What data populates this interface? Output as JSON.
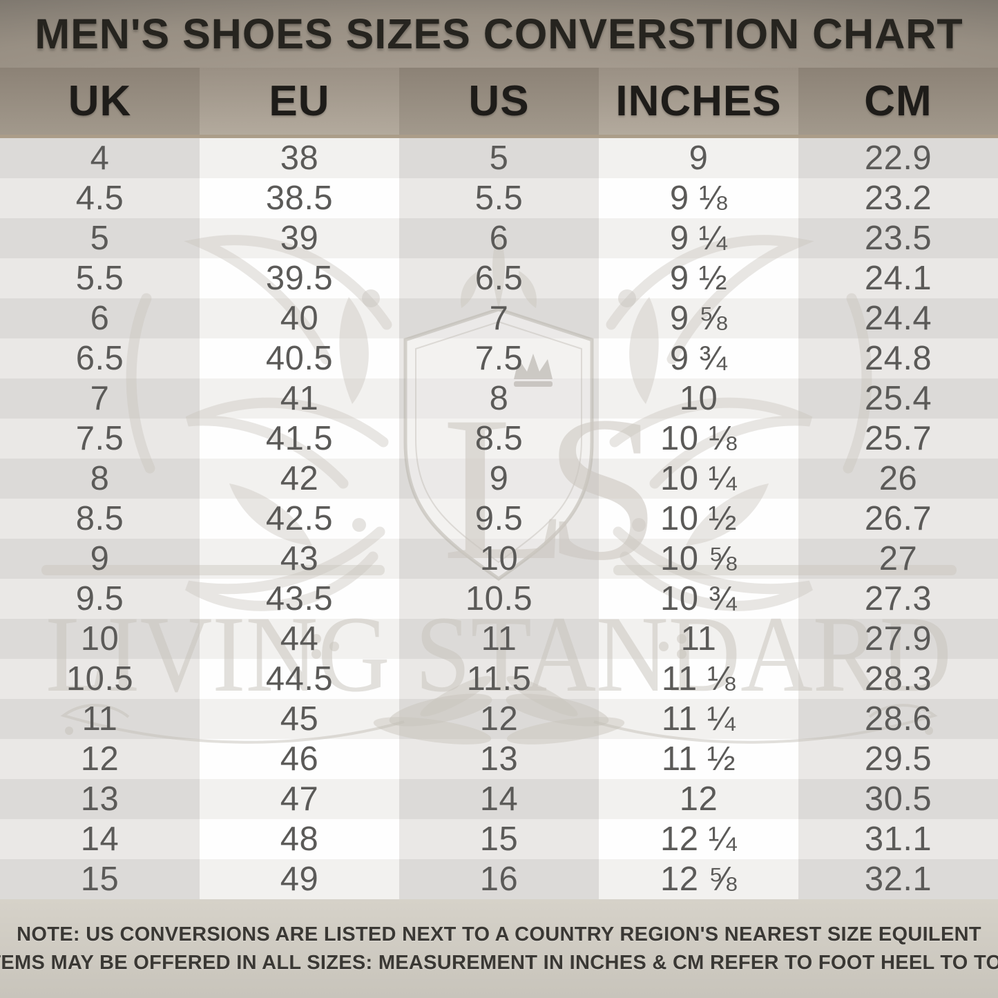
{
  "title": "MEN'S SHOES SIZES CONVERSTION CHART",
  "chart_data": {
    "type": "table",
    "title": "MEN'S SHOES SIZES CONVERSTION CHART",
    "columns": [
      "UK",
      "EU",
      "US",
      "INCHES",
      "CM"
    ],
    "rows": [
      [
        "4",
        "38",
        "5",
        "9",
        "22.9"
      ],
      [
        "4.5",
        "38.5",
        "5.5",
        "9 ⅛",
        "23.2"
      ],
      [
        "5",
        "39",
        "6",
        "9 ¼",
        "23.5"
      ],
      [
        "5.5",
        "39.5",
        "6.5",
        "9 ½",
        "24.1"
      ],
      [
        "6",
        "40",
        "7",
        "9 ⅝",
        "24.4"
      ],
      [
        "6.5",
        "40.5",
        "7.5",
        "9 ¾",
        "24.8"
      ],
      [
        "7",
        "41",
        "8",
        "10",
        "25.4"
      ],
      [
        "7.5",
        "41.5",
        "8.5",
        "10 ⅛",
        "25.7"
      ],
      [
        "8",
        "42",
        "9",
        "10 ¼",
        "26"
      ],
      [
        "8.5",
        "42.5",
        "9.5",
        "10 ½",
        "26.7"
      ],
      [
        "9",
        "43",
        "10",
        "10 ⅝",
        "27"
      ],
      [
        "9.5",
        "43.5",
        "10.5",
        "10 ¾",
        "27.3"
      ],
      [
        "10",
        "44",
        "11",
        "11",
        "27.9"
      ],
      [
        "10.5",
        "44.5",
        "11.5",
        "11 ⅛",
        "28.3"
      ],
      [
        "11",
        "45",
        "12",
        "11 ¼",
        "28.6"
      ],
      [
        "12",
        "46",
        "13",
        "11 ½",
        "29.5"
      ],
      [
        "13",
        "47",
        "14",
        "12",
        "30.5"
      ],
      [
        "14",
        "48",
        "15",
        "12 ¼",
        "31.1"
      ],
      [
        "15",
        "49",
        "16",
        "12 ⅝",
        "32.1"
      ]
    ]
  },
  "watermark": {
    "monogram": "LS",
    "name": "LIVING STANDARD"
  },
  "note": {
    "label": "NOTE:",
    "line1": "US CONVERSIONS ARE LISTED NEXT TO A COUNTRY REGION'S NEAREST SIZE EQUILENT",
    "line2": "ITEMS MAY BE OFFERED IN ALL SIZES: MEASUREMENT IN INCHES & CM REFER TO FOOT HEEL TO TOE"
  },
  "colors": {
    "title_band_dark": "#514e48",
    "title_band_light": "#aba195",
    "header_col_dark": "#8c8276",
    "header_col_light": "#b3aa9d",
    "divider_tan": "#ab9d89",
    "stripe_dark": "#dcdad8",
    "stripe_light": "#f2f1ef",
    "stripe_dark_alt": "#eae8e6",
    "stripe_white": "#fefefe",
    "cell_text": "#5b5a58",
    "note_bg": "#d0ccc3",
    "note_text": "#3a3834"
  }
}
